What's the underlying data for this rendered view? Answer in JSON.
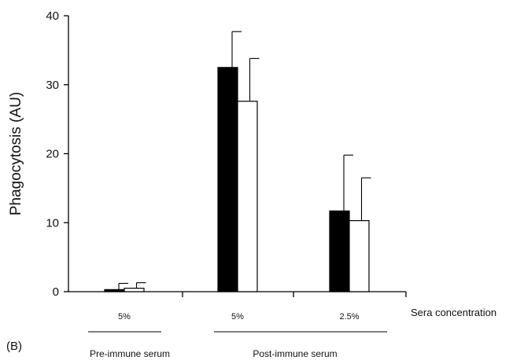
{
  "chart_data": {
    "type": "bar",
    "title": "",
    "panel_label": "(B)",
    "ylabel": "Phagocytosis  (AU)",
    "xlabel": "Sera concentration",
    "ylim": [
      0,
      40
    ],
    "yticks": [
      0,
      10,
      20,
      30,
      40
    ],
    "categories": [
      "5%",
      "5%",
      "2.5%"
    ],
    "groups": [
      {
        "label": "Pre-immune serum",
        "categories": [
          0
        ]
      },
      {
        "label": "Post-immune serum",
        "categories": [
          1,
          2
        ]
      }
    ],
    "series": [
      {
        "color": "#000000",
        "values": [
          0.3,
          32.5,
          11.7
        ],
        "errors": [
          0.9,
          5.2,
          8.1
        ]
      },
      {
        "color": "#ffffff",
        "values": [
          0.5,
          27.6,
          10.3
        ],
        "errors": [
          0.8,
          6.2,
          6.2
        ]
      }
    ],
    "grid": false,
    "legend": "none"
  }
}
